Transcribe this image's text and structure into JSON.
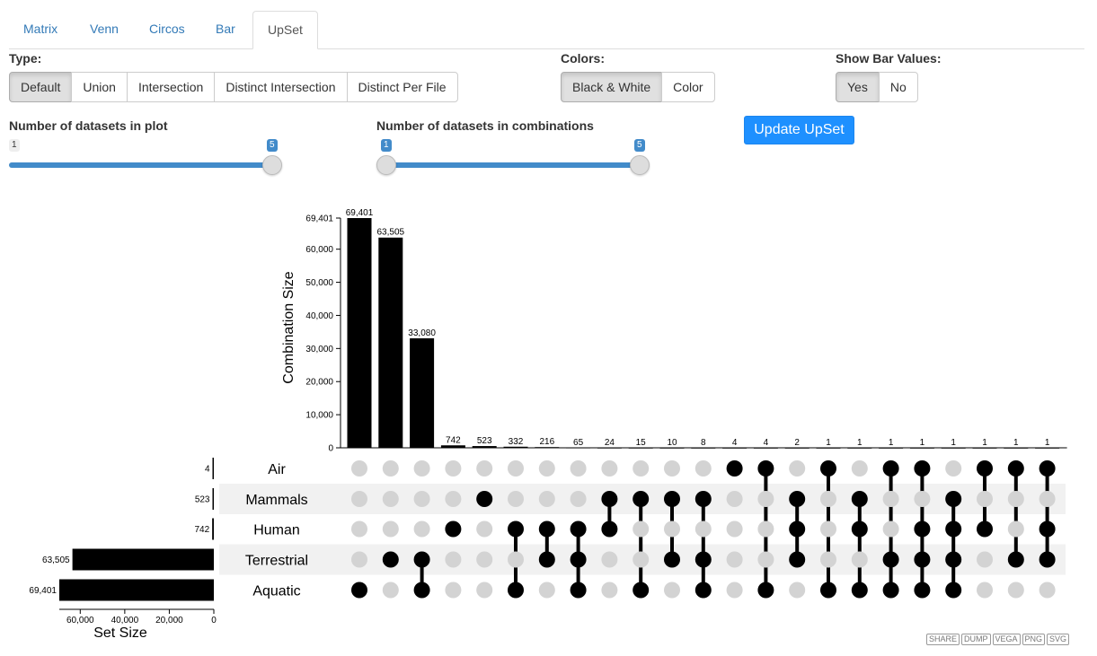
{
  "tabs": [
    "Matrix",
    "Venn",
    "Circos",
    "Bar",
    "UpSet"
  ],
  "active_tab": "UpSet",
  "type": {
    "label": "Type:",
    "options": [
      "Default",
      "Union",
      "Intersection",
      "Distinct Intersection",
      "Distinct Per File"
    ],
    "selected": "Default"
  },
  "colors": {
    "label": "Colors:",
    "options": [
      "Black & White",
      "Color"
    ],
    "selected": "Black & White"
  },
  "bar_values": {
    "label": "Show Bar Values:",
    "options": [
      "Yes",
      "No"
    ],
    "selected": "Yes"
  },
  "slider_plot": {
    "label": "Number of datasets in plot",
    "min": "1",
    "value": "5",
    "min_value": 1,
    "max_value": 5,
    "selected": 5
  },
  "slider_combo": {
    "label": "Number of datasets in combinations",
    "low": "1",
    "high": "5",
    "min_value": 1,
    "max_value": 5,
    "selected_low": 1,
    "selected_high": 5
  },
  "update_button": "Update UpSet",
  "actions": [
    "SHARE",
    "DUMP",
    "VEGA",
    "PNG",
    "SVG"
  ],
  "chart_data": {
    "type": "bar",
    "ylabel": "Combination Size",
    "set_size_label": "Set Size",
    "y_ticks": [
      "0",
      "10,000",
      "20,000",
      "30,000",
      "40,000",
      "50,000",
      "60,000"
    ],
    "y_tick_values": [
      0,
      10000,
      20000,
      30000,
      40000,
      50000,
      60000
    ],
    "y_max_label": "69,401",
    "ylim": [
      0,
      69401
    ],
    "set_ticks": [
      "60,000",
      "40,000",
      "20,000",
      "0"
    ],
    "set_tick_values": [
      60000,
      40000,
      20000,
      0
    ],
    "sets": [
      {
        "name": "Air",
        "size": 4,
        "label": "4"
      },
      {
        "name": "Mammals",
        "size": 523,
        "label": "523"
      },
      {
        "name": "Human",
        "size": 742,
        "label": "742"
      },
      {
        "name": "Terrestrial",
        "size": 63505,
        "label": "63,505"
      },
      {
        "name": "Aquatic",
        "size": 69401,
        "label": "69,401"
      }
    ],
    "combinations": [
      {
        "value": 69401,
        "label": "69,401",
        "sets": [
          4
        ]
      },
      {
        "value": 63505,
        "label": "63,505",
        "sets": [
          3
        ]
      },
      {
        "value": 33080,
        "label": "33,080",
        "sets": [
          3,
          4
        ]
      },
      {
        "value": 742,
        "label": "742",
        "sets": [
          2
        ]
      },
      {
        "value": 523,
        "label": "523",
        "sets": [
          1
        ]
      },
      {
        "value": 332,
        "label": "332",
        "sets": [
          2,
          4
        ]
      },
      {
        "value": 216,
        "label": "216",
        "sets": [
          2,
          3
        ]
      },
      {
        "value": 65,
        "label": "65",
        "sets": [
          2,
          3,
          4
        ]
      },
      {
        "value": 24,
        "label": "24",
        "sets": [
          1,
          2
        ]
      },
      {
        "value": 15,
        "label": "15",
        "sets": [
          1,
          4
        ]
      },
      {
        "value": 10,
        "label": "10",
        "sets": [
          1,
          3
        ]
      },
      {
        "value": 8,
        "label": "8",
        "sets": [
          1,
          3,
          4
        ]
      },
      {
        "value": 4,
        "label": "4",
        "sets": [
          0
        ]
      },
      {
        "value": 4,
        "label": "4",
        "sets": [
          0,
          4
        ]
      },
      {
        "value": 2,
        "label": "2",
        "sets": [
          1,
          2,
          3
        ]
      },
      {
        "value": 1,
        "label": "1",
        "sets": [
          0,
          4
        ]
      },
      {
        "value": 1,
        "label": "1",
        "sets": [
          1,
          2,
          4
        ]
      },
      {
        "value": 1,
        "label": "1",
        "sets": [
          0,
          3,
          4
        ]
      },
      {
        "value": 1,
        "label": "1",
        "sets": [
          0,
          2,
          3,
          4
        ]
      },
      {
        "value": 1,
        "label": "1",
        "sets": [
          1,
          2,
          3,
          4
        ]
      },
      {
        "value": 1,
        "label": "1",
        "sets": [
          0,
          2
        ]
      },
      {
        "value": 1,
        "label": "1",
        "sets": [
          0,
          3
        ]
      },
      {
        "value": 1,
        "label": "1",
        "sets": [
          0,
          2,
          3
        ]
      }
    ]
  }
}
